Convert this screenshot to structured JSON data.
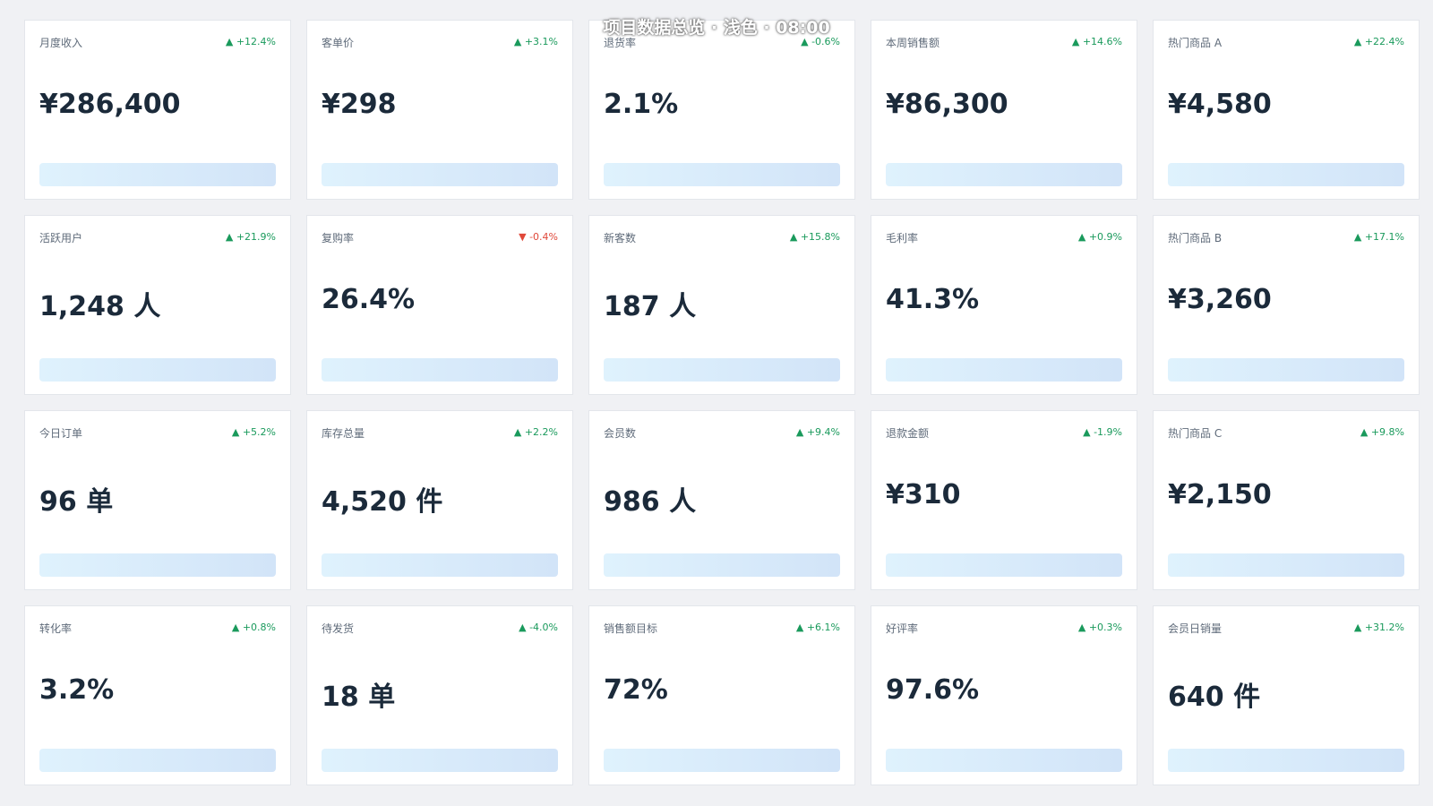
{
  "header": {
    "title": "项目数据总览 · 浅色 · 08:00"
  },
  "cards": [
    {
      "label": "月度收入",
      "delta": "▲ +12.4%",
      "delta_color": "#1a9a5c",
      "value": "¥286,400"
    },
    {
      "label": "客单价",
      "delta": "▲ +3.1%",
      "delta_color": "#1a9a5c",
      "value": "¥298"
    },
    {
      "label": "退货率",
      "delta": "▲ -0.6%",
      "delta_color": "#1a9a5c",
      "value": "2.1%"
    },
    {
      "label": "本周销售额",
      "delta": "▲ +14.6%",
      "delta_color": "#1a9a5c",
      "value": "¥86,300"
    },
    {
      "label": "热门商品 A",
      "delta": "▲ +22.4%",
      "delta_color": "#1a9a5c",
      "value": "¥4,580"
    },
    {
      "label": "活跃用户",
      "delta": "▲ +21.9%",
      "delta_color": "#1a9a5c",
      "value": "1,248 人"
    },
    {
      "label": "复购率",
      "delta": "▼ -0.4%",
      "delta_color": "#e0483a",
      "value": "26.4%"
    },
    {
      "label": "新客数",
      "delta": "▲ +15.8%",
      "delta_color": "#1a9a5c",
      "value": "187 人"
    },
    {
      "label": "毛利率",
      "delta": "▲ +0.9%",
      "delta_color": "#1a9a5c",
      "value": "41.3%"
    },
    {
      "label": "热门商品 B",
      "delta": "▲ +17.1%",
      "delta_color": "#1a9a5c",
      "value": "¥3,260"
    },
    {
      "label": "今日订单",
      "delta": "▲ +5.2%",
      "delta_color": "#1a9a5c",
      "value": "96 单"
    },
    {
      "label": "库存总量",
      "delta": "▲ +2.2%",
      "delta_color": "#1a9a5c",
      "value": "4,520 件"
    },
    {
      "label": "会员数",
      "delta": "▲ +9.4%",
      "delta_color": "#1a9a5c",
      "value": "986 人"
    },
    {
      "label": "退款金额",
      "delta": "▲ -1.9%",
      "delta_color": "#1a9a5c",
      "value": "¥310"
    },
    {
      "label": "热门商品 C",
      "delta": "▲ +9.8%",
      "delta_color": "#1a9a5c",
      "value": "¥2,150"
    },
    {
      "label": "转化率",
      "delta": "▲ +0.8%",
      "delta_color": "#1a9a5c",
      "value": "3.2%"
    },
    {
      "label": "待发货",
      "delta": "▲ -4.0%",
      "delta_color": "#1a9a5c",
      "value": "18 单"
    },
    {
      "label": "销售额目标",
      "delta": "▲ +6.1%",
      "delta_color": "#1a9a5c",
      "value": "72%"
    },
    {
      "label": "好评率",
      "delta": "▲ +0.3%",
      "delta_color": "#1a9a5c",
      "value": "97.6%"
    },
    {
      "label": "会员日销量",
      "delta": "▲ +31.2%",
      "delta_color": "#1a9a5c",
      "value": "640 件"
    }
  ]
}
